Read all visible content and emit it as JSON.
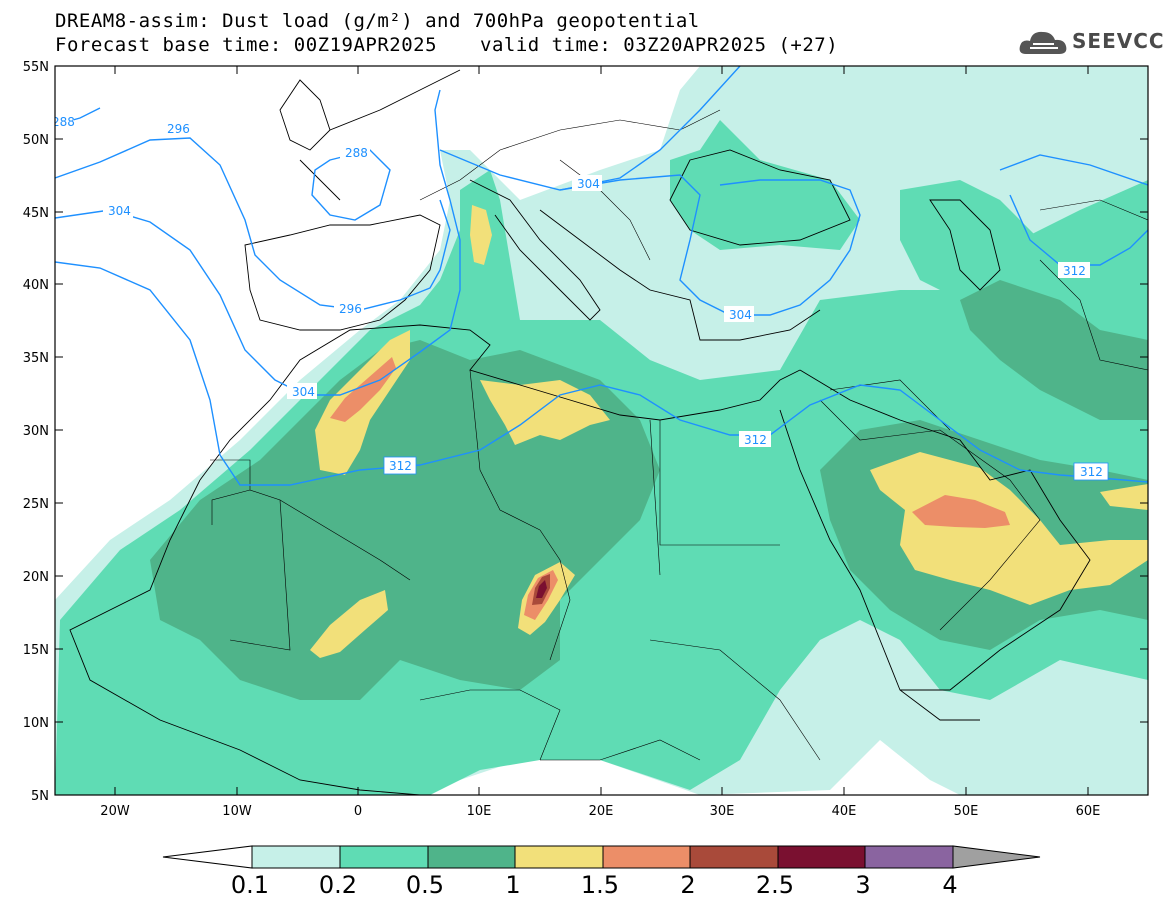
{
  "title": {
    "line1": "DREAM8-assim: Dust load (g/m²) and 700hPa geopotential",
    "base_time": "Forecast base time: 00Z19APR2025",
    "valid_time": "valid time: 03Z20APR2025 (+27)"
  },
  "logo": {
    "text": "SEEVCCC",
    "icon": "cloud-icon"
  },
  "axes": {
    "lon_labels": [
      "20W",
      "10W",
      "0",
      "10E",
      "20E",
      "30E",
      "40E",
      "50E",
      "60E"
    ],
    "lat_labels": [
      "55N",
      "50N",
      "45N",
      "40N",
      "35N",
      "30N",
      "25N",
      "20N",
      "15N",
      "10N",
      "5N"
    ]
  },
  "contours": {
    "color": "#1e90ff",
    "labels": [
      "288",
      "296",
      "288",
      "304",
      "296",
      "304",
      "312",
      "304",
      "304",
      "312",
      "312",
      "312"
    ]
  },
  "colorbar": {
    "levels": [
      "0.1",
      "0.2",
      "0.5",
      "1",
      "1.5",
      "2",
      "2.5",
      "3",
      "4"
    ],
    "colors": [
      "#c6f0e8",
      "#5fdcb4",
      "#4fb48a",
      "#f2e07a",
      "#ec8e68",
      "#a94a3a",
      "#7a1030",
      "#8a64a0"
    ],
    "under_color": "#ffffff",
    "over_color": "#a0a0a0"
  },
  "map_colors": {
    "ocean": "#ffffff",
    "light": "#c6f0e8",
    "medium": "#5fdcb4",
    "dark": "#4fb48a",
    "yellow": "#f2e07a",
    "orange": "#ec8e68",
    "brown": "#a94a3a",
    "maroon": "#7a1030"
  }
}
